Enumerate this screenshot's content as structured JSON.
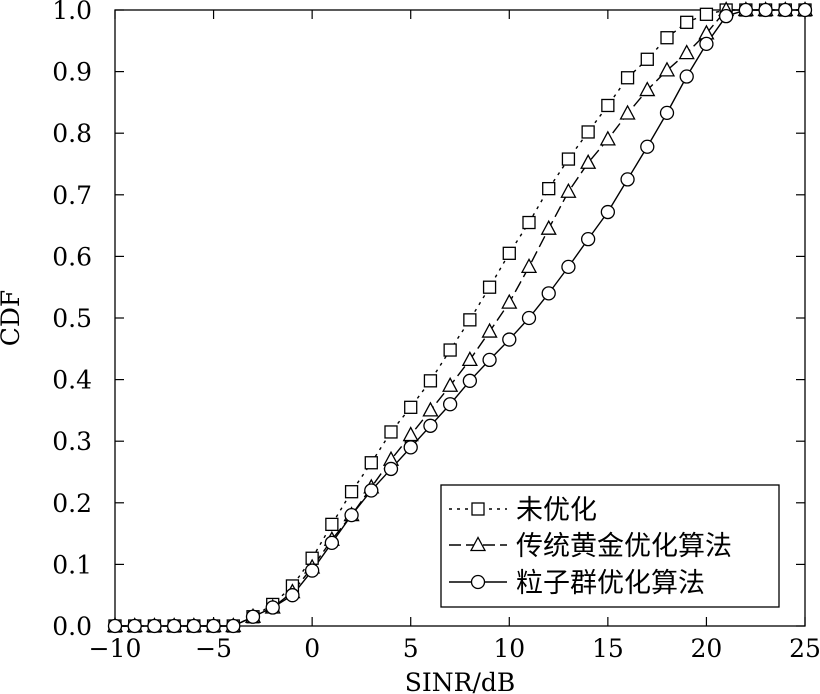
{
  "chart_data": {
    "type": "line",
    "title": "",
    "xlabel": "SINR/dB",
    "ylabel": "CDF",
    "xlim": [
      -10,
      25
    ],
    "ylim": [
      0,
      1
    ],
    "xticks": [
      -10,
      -5,
      0,
      5,
      10,
      15,
      20,
      25
    ],
    "xtick_labels": [
      "−10",
      "−5",
      "0",
      "5",
      "10",
      "15",
      "20",
      "25"
    ],
    "yticks": [
      0,
      0.1,
      0.2,
      0.3,
      0.4,
      0.5,
      0.6,
      0.7,
      0.8,
      0.9,
      1.0
    ],
    "ytick_labels": [
      "0.0",
      "0.1",
      "0.2",
      "0.3",
      "0.4",
      "0.5",
      "0.6",
      "0.7",
      "0.8",
      "0.9",
      "1.0"
    ],
    "grid": false,
    "legend_position": "bottom-right",
    "x": [
      -10,
      -9,
      -8,
      -7,
      -6,
      -5,
      -4,
      -3,
      -2,
      -1,
      0,
      1,
      2,
      3,
      4,
      5,
      6,
      7,
      8,
      9,
      10,
      11,
      12,
      13,
      14,
      15,
      16,
      17,
      18,
      19,
      20,
      21,
      22,
      23,
      24,
      25
    ],
    "series": [
      {
        "name": "未优化",
        "marker": "square",
        "line": "dotted",
        "values": [
          0,
          0,
          0,
          0,
          0,
          0,
          0,
          0.015,
          0.035,
          0.065,
          0.11,
          0.165,
          0.218,
          0.265,
          0.315,
          0.355,
          0.398,
          0.448,
          0.497,
          0.55,
          0.605,
          0.655,
          0.71,
          0.758,
          0.802,
          0.845,
          0.89,
          0.92,
          0.955,
          0.98,
          0.993,
          1.0,
          1.0,
          1.0,
          1.0,
          1.0
        ]
      },
      {
        "name": "传统黄金优化算法",
        "marker": "triangle",
        "line": "dashed",
        "values": [
          0,
          0,
          0,
          0,
          0,
          0,
          0,
          0.015,
          0.03,
          0.055,
          0.095,
          0.14,
          0.18,
          0.225,
          0.27,
          0.31,
          0.35,
          0.39,
          0.432,
          0.478,
          0.525,
          0.583,
          0.645,
          0.705,
          0.752,
          0.79,
          0.832,
          0.87,
          0.902,
          0.93,
          0.962,
          1.0,
          1.0,
          1.0,
          1.0,
          1.0
        ]
      },
      {
        "name": "粒子群优化算法",
        "marker": "circle",
        "line": "solid",
        "values": [
          0,
          0,
          0,
          0,
          0,
          0,
          0,
          0.015,
          0.03,
          0.05,
          0.09,
          0.135,
          0.18,
          0.22,
          0.255,
          0.29,
          0.325,
          0.36,
          0.398,
          0.432,
          0.465,
          0.5,
          0.54,
          0.583,
          0.628,
          0.672,
          0.725,
          0.778,
          0.833,
          0.892,
          0.945,
          0.99,
          1.0,
          1.0,
          1.0,
          1.0
        ]
      }
    ]
  }
}
